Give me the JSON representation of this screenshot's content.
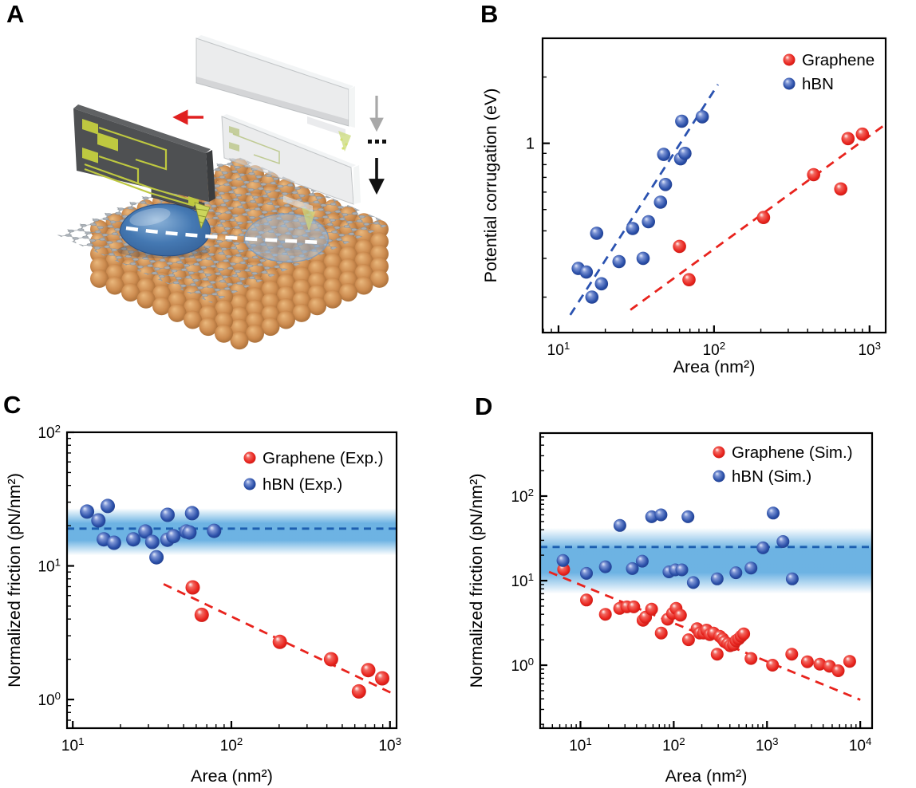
{
  "figure": {
    "background": "#ffffff"
  },
  "panels": [
    {
      "id": "A",
      "label": "A"
    },
    {
      "id": "B",
      "label": "B"
    },
    {
      "id": "C",
      "label": "C"
    },
    {
      "id": "D",
      "label": "D"
    }
  ],
  "colors": {
    "red": "#e8231d",
    "blue": "#2a4fa8",
    "blue_line": "#2a52b0",
    "band_line": "#1d5fb0",
    "band_fill": "#4da2dd",
    "axis": "#000000"
  },
  "illustration": {
    "description": "AFM cantilever chips with pyramidal tips sliding nanoscale water droplets across a 2D sheet (graphene or hBN) resting on a copper substrate; ghost cantilevers with gray and black down arrows and ellipsis dots indicate repeated approach steps; a white dashed line marks the sliding path; a red arrow marks the sliding direction",
    "colors": {
      "copper_hi": "#eab97e",
      "copper": "#cd8c50",
      "copper_lo": "#8a5524",
      "atom": "#a7aeb5",
      "atom_edge": "#838a91",
      "bond": "#8f969c",
      "droplet_hi": "#8fb5da",
      "droplet": "#4579b3",
      "droplet_lo": "#2a5186",
      "droplet_ghost": "rgba(155,188,222,0.5)",
      "droplet_ghost_edge": "rgba(110,150,195,0.7)",
      "chip": "#4e5052",
      "chip_dark": "#3a3c3e",
      "chip_light": "#606264",
      "trace": "#bec840",
      "tip": "#ccd65c",
      "tip_dark": "#8a9430",
      "ghost_fill": "rgba(218,220,222,0.55)",
      "ghost_edge": "rgba(178,181,184,0.75)",
      "ghost_top": "rgba(238,240,241,0.75)",
      "ghost_tip": "rgba(205,220,130,0.8)",
      "arrow_red": "#e02020",
      "arrow_gray": "#a8a8a8",
      "arrow_black": "#111111",
      "dash_white": "#ffffff",
      "shadow": "rgba(40,55,80,0.25)"
    }
  },
  "chart_data": [
    {
      "id": "B",
      "type": "scatter",
      "xscale": "log",
      "yscale": "log",
      "xlabel": "Area (nm²)",
      "ylabel": "Potential corrugation (eV)",
      "xlim": [
        7.9,
        1270
      ],
      "ylim": [
        0.138,
        3.0
      ],
      "xticks": [
        10,
        100,
        1000
      ],
      "yticks": [
        1
      ],
      "ytick_labels": [
        "1"
      ],
      "legend": [
        {
          "label": "Graphene",
          "series": "graphene"
        },
        {
          "label": "hBN",
          "series": "hbn"
        }
      ],
      "series": [
        {
          "name": "graphene",
          "color": "red",
          "points": [
            [
              60,
              0.34
            ],
            [
              69,
              0.24
            ],
            [
              208,
              0.46
            ],
            [
              437,
              0.72
            ],
            [
              653,
              0.62
            ],
            [
              727,
              1.05
            ],
            [
              900,
              1.1
            ]
          ]
        },
        {
          "name": "hbn",
          "color": "blue",
          "points": [
            [
              13.4,
              0.27
            ],
            [
              15.1,
              0.26
            ],
            [
              16.4,
              0.2
            ],
            [
              18.9,
              0.23
            ],
            [
              17.6,
              0.39
            ],
            [
              24.5,
              0.29
            ],
            [
              30,
              0.41
            ],
            [
              35,
              0.3
            ],
            [
              37.9,
              0.44
            ],
            [
              45.3,
              0.54
            ],
            [
              48.7,
              0.65
            ],
            [
              47.5,
              0.89
            ],
            [
              61,
              0.85
            ],
            [
              65,
              0.9
            ],
            [
              62,
              1.26
            ],
            [
              84,
              1.32
            ]
          ]
        }
      ],
      "trends": [
        {
          "series": "hbn",
          "color": "blue",
          "from": [
            11.9,
            0.166
          ],
          "to": [
            106,
            1.85
          ]
        },
        {
          "series": "graphene",
          "color": "red",
          "from": [
            29,
            0.175
          ],
          "to": [
            1267,
            1.22
          ]
        }
      ]
    },
    {
      "id": "C",
      "type": "scatter",
      "xscale": "log",
      "yscale": "log",
      "xlabel": "Area (nm²)",
      "ylabel": "Normalized friction (pN/nm²)",
      "xlim": [
        9.2,
        1100
      ],
      "ylim": [
        0.61,
        100
      ],
      "xticks": [
        10,
        100,
        1000
      ],
      "yticks": [
        1,
        10,
        100
      ],
      "legend": [
        {
          "label": "Graphene (Exp.)",
          "series": "graphene"
        },
        {
          "label": "hBN (Exp.)",
          "series": "hbn"
        }
      ],
      "series": [
        {
          "name": "graphene",
          "color": "red",
          "points": [
            [
              57,
              6.9
            ],
            [
              65,
              4.3
            ],
            [
              202,
              2.7
            ],
            [
              425,
              2.0
            ],
            [
              637,
              1.15
            ],
            [
              729,
              1.66
            ],
            [
              893,
              1.44
            ]
          ]
        },
        {
          "name": "hbn",
          "color": "blue",
          "points": [
            [
              12.3,
              25.5
            ],
            [
              14.5,
              21.9
            ],
            [
              16.6,
              28.1
            ],
            [
              15.7,
              15.8
            ],
            [
              18.2,
              14.9
            ],
            [
              24.1,
              15.8
            ],
            [
              28.7,
              18.1
            ],
            [
              33.7,
              11.6
            ],
            [
              31.7,
              15.1
            ],
            [
              39.6,
              24.1
            ],
            [
              39.5,
              15.7
            ],
            [
              43.1,
              16.7
            ],
            [
              51.9,
              18.1
            ],
            [
              56.5,
              24.8
            ],
            [
              54.4,
              17.8
            ],
            [
              77.8,
              18.3
            ]
          ]
        }
      ],
      "band": {
        "center": 19,
        "top": 27,
        "bottom": 12
      },
      "trends": [
        {
          "series": "graphene",
          "color": "red",
          "from": [
            37.4,
            7.3
          ],
          "to": [
            1020,
            1.12
          ]
        }
      ]
    },
    {
      "id": "D",
      "type": "scatter",
      "xscale": "log",
      "yscale": "log",
      "xlabel": "Area (nm²)",
      "ylabel": "Normalized friction (pN/nm²)",
      "xlim": [
        3.7,
        13400
      ],
      "ylim": [
        0.18,
        556
      ],
      "xticks": [
        10,
        100,
        1000,
        10000
      ],
      "yticks": [
        1,
        10,
        100
      ],
      "legend": [
        {
          "label": "Graphene (Sim.)",
          "series": "graphene"
        },
        {
          "label": "hBN (Sim.)",
          "series": "hbn"
        }
      ],
      "series": [
        {
          "name": "graphene",
          "color": "red",
          "points": [
            [
              6.6,
              13.6
            ],
            [
              11.6,
              5.9
            ],
            [
              18.5,
              4.0
            ],
            [
              26.3,
              4.7
            ],
            [
              31.5,
              4.9
            ],
            [
              37.3,
              4.9
            ],
            [
              46.9,
              3.4
            ],
            [
              49.9,
              3.7
            ],
            [
              57.9,
              4.6
            ],
            [
              73.4,
              2.4
            ],
            [
              86,
              3.5
            ],
            [
              97,
              4.1
            ],
            [
              106,
              4.7
            ],
            [
              118,
              3.9
            ],
            [
              144,
              2.0
            ],
            [
              178,
              2.7
            ],
            [
              190,
              2.4
            ],
            [
              209,
              2.4
            ],
            [
              225,
              2.6
            ],
            [
              244,
              2.3
            ],
            [
              267,
              2.4
            ],
            [
              292,
              1.35
            ],
            [
              311,
              2.2
            ],
            [
              335,
              2.05
            ],
            [
              351,
              1.9
            ],
            [
              380,
              1.8
            ],
            [
              403,
              1.7
            ],
            [
              437,
              1.75
            ],
            [
              466,
              1.95
            ],
            [
              497,
              2.05
            ],
            [
              530,
              2.2
            ],
            [
              563,
              2.35
            ],
            [
              674,
              1.2
            ],
            [
              1146,
              1.0
            ],
            [
              1845,
              1.35
            ],
            [
              2713,
              1.1
            ],
            [
              3690,
              1.03
            ],
            [
              4680,
              0.97
            ],
            [
              5800,
              0.86
            ],
            [
              7700,
              1.11
            ]
          ]
        },
        {
          "name": "hbn",
          "color": "blue",
          "points": [
            [
              6.5,
              17.3
            ],
            [
              11.6,
              12.2
            ],
            [
              18.5,
              14.6
            ],
            [
              26.5,
              45
            ],
            [
              36,
              13.9
            ],
            [
              46,
              17
            ],
            [
              58,
              57
            ],
            [
              73,
              60
            ],
            [
              89,
              12.7
            ],
            [
              104,
              13.4
            ],
            [
              122,
              13.4
            ],
            [
              142,
              57
            ],
            [
              162,
              9.5
            ],
            [
              292,
              10.5
            ],
            [
              464,
              12.4
            ],
            [
              674,
              14.1
            ],
            [
              906,
              24.4
            ],
            [
              1164,
              63
            ],
            [
              1483,
              29
            ],
            [
              1866,
              10.5
            ]
          ]
        }
      ],
      "band": {
        "center": 25,
        "top": 42,
        "bottom": 7
      },
      "trends": [
        {
          "series": "graphene",
          "color": "red",
          "from": [
            4.6,
            12.7
          ],
          "to": [
            10000,
            0.39
          ]
        }
      ]
    }
  ]
}
